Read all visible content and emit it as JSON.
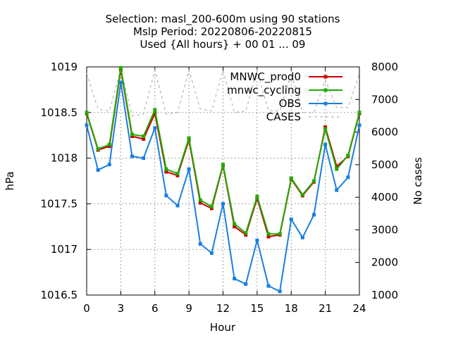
{
  "chart_data": {
    "type": "line",
    "title_lines": [
      "Selection: masl_200-600m using    90 stations",
      "Mslp   Period: 20220806-20220815",
      "Used {All hours} + 00 01 ... 09"
    ],
    "xlabel": "Hour",
    "ylabel": "hPa",
    "y2label": "No cases",
    "xlim": [
      0,
      24
    ],
    "ylim": [
      1016.5,
      1019
    ],
    "y2lim": [
      1000,
      8000
    ],
    "x_ticks": [
      0,
      3,
      6,
      9,
      12,
      15,
      18,
      21,
      24
    ],
    "y_ticks": [
      1016.5,
      1017,
      1017.5,
      1018,
      1018.5,
      1019
    ],
    "y2_ticks": [
      1000,
      2000,
      3000,
      4000,
      5000,
      6000,
      7000,
      8000
    ],
    "grid": true,
    "legend_position": "top-right",
    "x": [
      0,
      1,
      2,
      3,
      4,
      5,
      6,
      7,
      8,
      9,
      10,
      11,
      12,
      13,
      14,
      15,
      16,
      17,
      18,
      19,
      20,
      21,
      22,
      23,
      24
    ],
    "series": [
      {
        "name": "MNWC_prod0",
        "color": "#cc0000",
        "axis": "left",
        "style": "line-points",
        "values": [
          1018.49,
          1018.09,
          1018.13,
          1018.97,
          1018.24,
          1018.21,
          1018.49,
          1017.85,
          1017.81,
          1018.2,
          1017.51,
          1017.45,
          1017.92,
          1017.25,
          1017.16,
          1017.56,
          1017.14,
          1017.16,
          1017.77,
          1017.59,
          1017.74,
          1018.34,
          1017.91,
          1018.02,
          1018.49
        ]
      },
      {
        "name": "mnwc_cycling",
        "color": "#22aa00",
        "axis": "left",
        "style": "line-points",
        "values": [
          1018.5,
          1018.1,
          1018.15,
          1018.99,
          1018.26,
          1018.24,
          1018.53,
          1017.88,
          1017.83,
          1018.22,
          1017.54,
          1017.47,
          1017.93,
          1017.28,
          1017.18,
          1017.58,
          1017.17,
          1017.17,
          1017.78,
          1017.6,
          1017.75,
          1018.32,
          1017.88,
          1018.03,
          1018.5
        ]
      },
      {
        "name": "OBS",
        "color": "#1a7fe0",
        "axis": "left",
        "style": "line-points",
        "values": [
          1018.36,
          1017.87,
          1017.93,
          1018.83,
          1018.02,
          1018.0,
          1018.33,
          1017.59,
          1017.48,
          1017.88,
          1017.06,
          1016.96,
          1017.5,
          1016.68,
          1016.62,
          1017.1,
          1016.6,
          1016.54,
          1017.33,
          1017.13,
          1017.38,
          1018.15,
          1017.65,
          1017.79,
          1018.36
        ]
      },
      {
        "name": "CASES",
        "color": "#aaaaaa",
        "axis": "right",
        "style": "dashed",
        "values": [
          7800,
          6700,
          6650,
          7950,
          6500,
          6550,
          7900,
          6550,
          6600,
          7900,
          6700,
          6650,
          7900,
          6600,
          6650,
          7900,
          6650,
          6650,
          7800,
          6600,
          6600,
          7600,
          6750,
          6750,
          7800
        ]
      }
    ]
  }
}
